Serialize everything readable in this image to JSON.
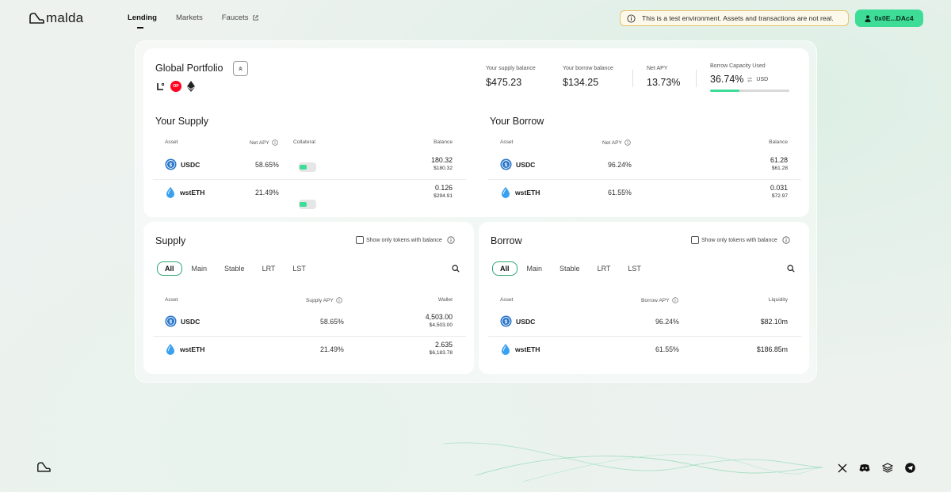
{
  "brand": {
    "name": "malda"
  },
  "nav": [
    {
      "label": "Lending",
      "active": true
    },
    {
      "label": "Markets",
      "active": false
    },
    {
      "label": "Faucets",
      "active": false
    }
  ],
  "notice": {
    "text": "This is a test environment. Assets and transactions are not real."
  },
  "wallet": {
    "label": "0x0E...DAc4"
  },
  "portfolio": {
    "title": "Global Portfolio",
    "chains": [
      "linea-icon",
      "optimism-icon",
      "ethereum-icon"
    ],
    "op_badge": "OP",
    "supply_balance_label": "Your supply balance",
    "supply_balance": "$475.23",
    "borrow_balance_label": "Your borrow balance",
    "borrow_balance": "$134.25",
    "net_apy_label": "Net APY",
    "net_apy": "13.73%",
    "capacity_label": "Borrow Capacity Used",
    "capacity_value": "36.74%",
    "capacity_unit": "USD",
    "capacity_fraction": 0.3674
  },
  "your_supply": {
    "title": "Your Supply",
    "headers": {
      "asset": "Asset",
      "apy": "Net APY",
      "collateral": "Collateral",
      "balance": "Balance"
    },
    "rows": [
      {
        "asset": "USDC",
        "apy": "58.65%",
        "balance": "180.32",
        "balance_usd": "$180.32",
        "collateral": true
      },
      {
        "asset": "wstETH",
        "apy": "21.49%",
        "balance": "0.126",
        "balance_usd": "$294.91",
        "collateral": true
      }
    ]
  },
  "your_borrow": {
    "title": "Your Borrow",
    "headers": {
      "asset": "Asset",
      "apy": "Net APY",
      "balance": "Balance"
    },
    "rows": [
      {
        "asset": "USDC",
        "apy": "96.24%",
        "balance": "61.28",
        "balance_usd": "$61.28"
      },
      {
        "asset": "wstETH",
        "apy": "61.55%",
        "balance": "0.031",
        "balance_usd": "$72.97"
      }
    ]
  },
  "supply_market": {
    "title": "Supply",
    "show_only_label": "Show only tokens with balance",
    "tabs": [
      "All",
      "Main",
      "Stable",
      "LRT",
      "LST"
    ],
    "active_tab": "All",
    "headers": {
      "asset": "Asset",
      "apy": "Supply APY",
      "right": "Wallet"
    },
    "rows": [
      {
        "asset": "USDC",
        "apy": "58.65%",
        "main": "4,503.00",
        "sub": "$4,503.00"
      },
      {
        "asset": "wstETH",
        "apy": "21.49%",
        "main": "2.635",
        "sub": "$6,183.78"
      }
    ]
  },
  "borrow_market": {
    "title": "Borrow",
    "show_only_label": "Show only tokens with balance",
    "tabs": [
      "All",
      "Main",
      "Stable",
      "LRT",
      "LST"
    ],
    "active_tab": "All",
    "headers": {
      "asset": "Asset",
      "apy": "Borrow APY",
      "right": "Liquidity"
    },
    "rows": [
      {
        "asset": "USDC",
        "apy": "96.24%",
        "main": "$82.10m"
      },
      {
        "asset": "wstETH",
        "apy": "61.55%",
        "main": "$186.85m"
      }
    ]
  },
  "footer": {
    "socials": [
      "x-icon",
      "discord-icon",
      "docs-icon",
      "telegram-icon"
    ]
  },
  "colors": {
    "accent": "#3ddc97",
    "usdc": "#2775ca",
    "wsteth": "#3aa0f0",
    "op": "#ff0420",
    "notice_border": "#e4c26a"
  }
}
